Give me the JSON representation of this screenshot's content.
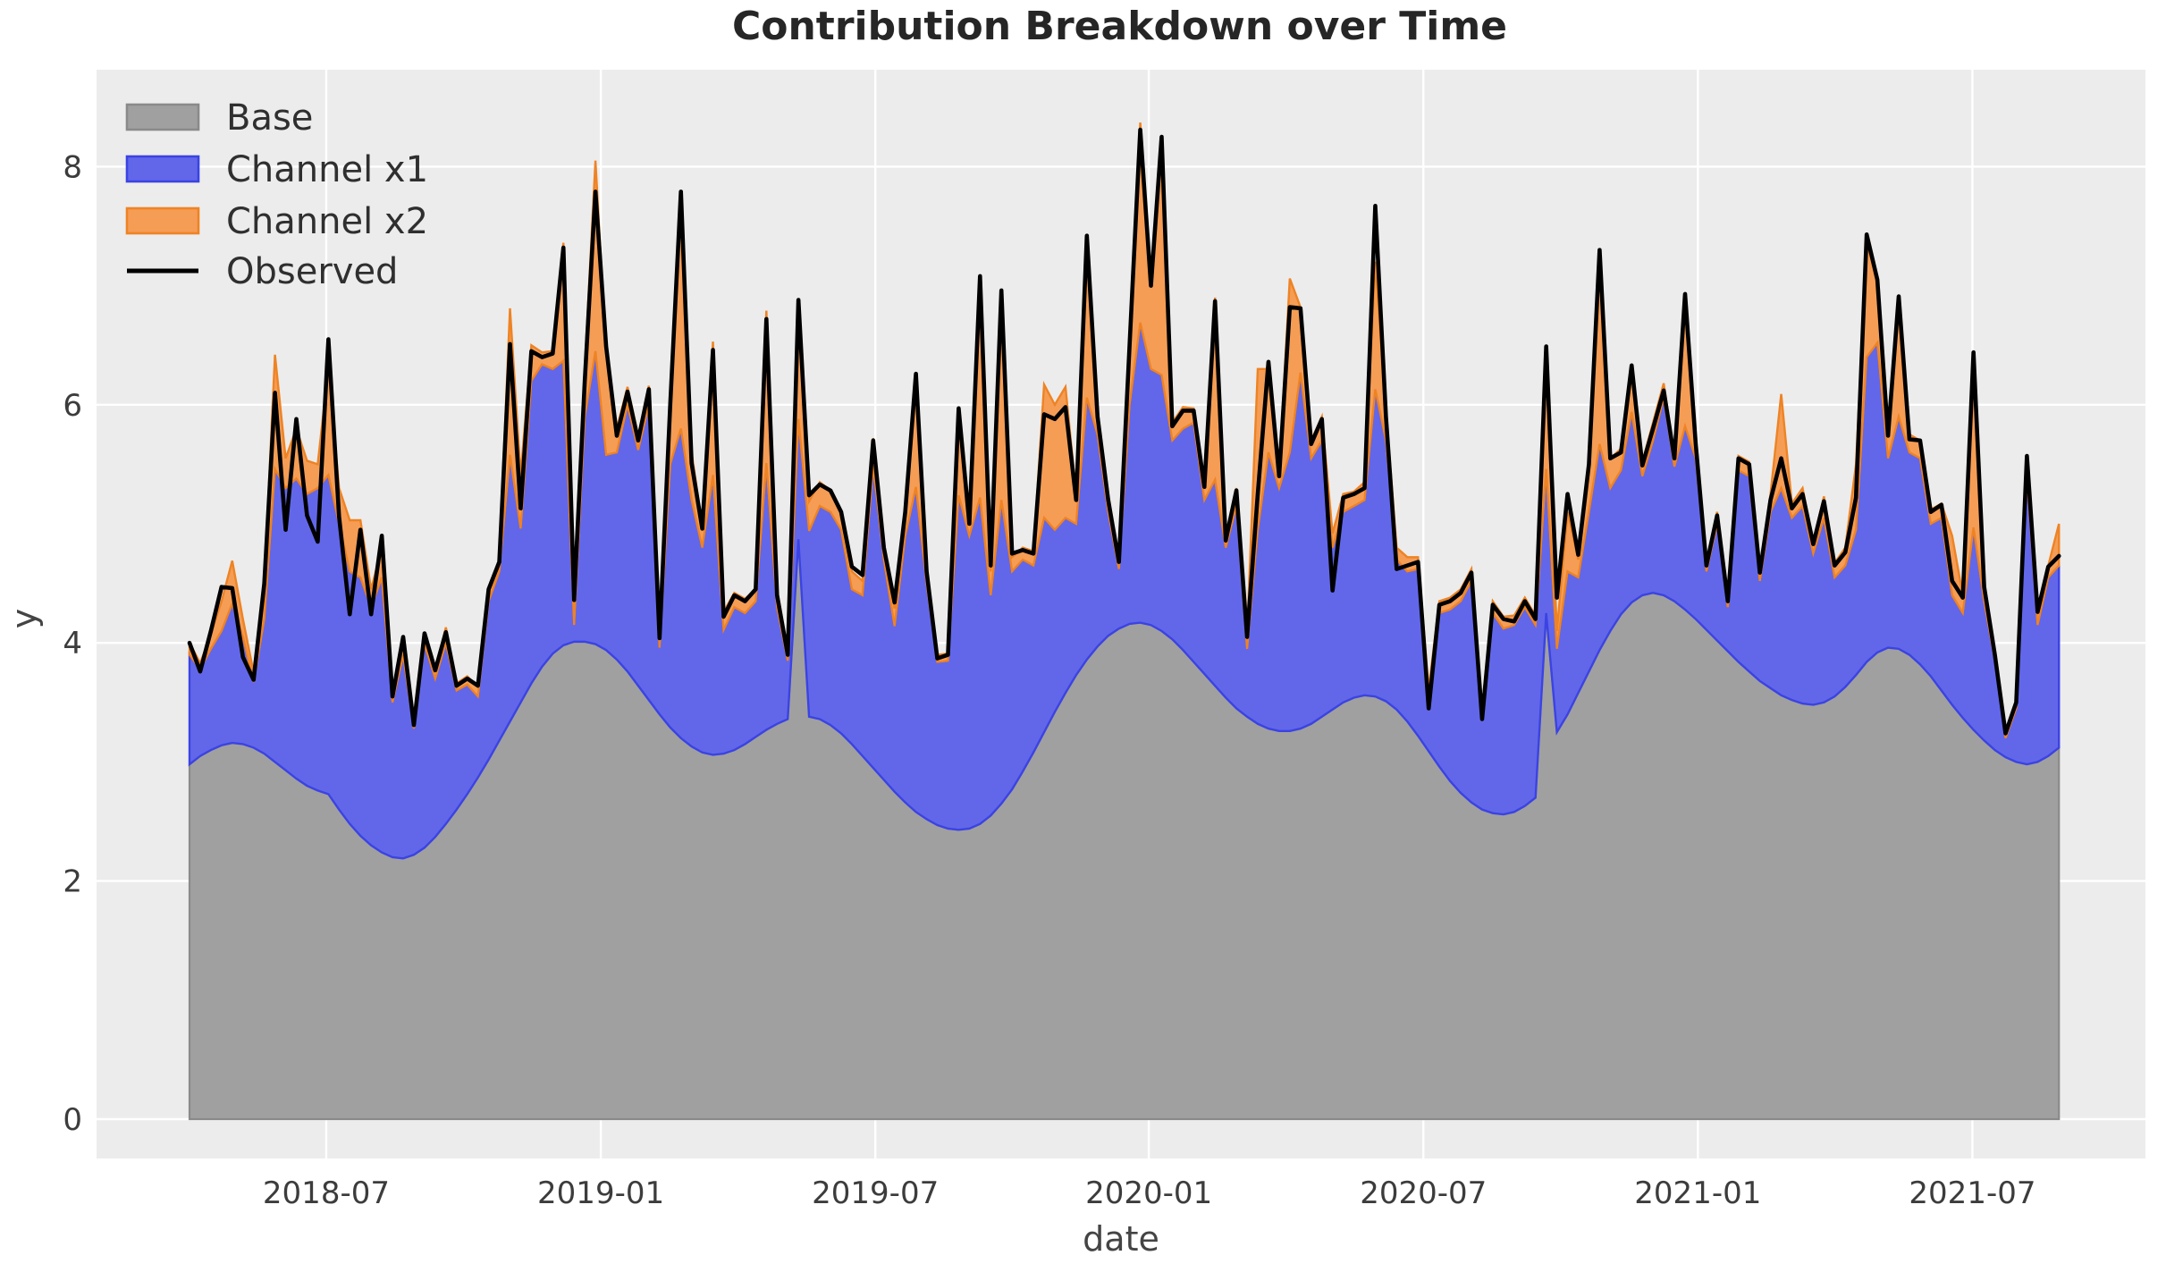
{
  "chart": {
    "window_title": "Contribution Breakdown over Time"
  },
  "chart_data": {
    "type": "area",
    "title": "Contribution Breakdown over Time",
    "xlabel": "date",
    "ylabel": "y",
    "x_unit": "weekly samples, index 0 = 2018-04-01",
    "n_points": 176,
    "ylim": [
      -0.45,
      8.8
    ],
    "grid": "on, white gridlines on light-gray panel",
    "legend_position": "upper left, no frame",
    "colors": {
      "panel_background": "#ececec",
      "gridline": "#ffffff",
      "base_fill": "#a0a0a0",
      "base_edge": "#8a8a8a",
      "x1_fill": "#6267ea",
      "x1_edge": "#3b43e3",
      "x2_fill": "#f59d55",
      "x2_edge": "#ee8324",
      "observed_line": "#000000",
      "tick_text": "#3c3c3c",
      "label_text": "#444444",
      "title_text": "#262626"
    },
    "legend": [
      {
        "label": "Base",
        "type": "patch",
        "fill": "#a0a0a0",
        "edge": "#8a8a8a"
      },
      {
        "label": "Channel x1",
        "type": "patch",
        "fill": "#6267ea",
        "edge": "#3b43e3"
      },
      {
        "label": "Channel x2",
        "type": "patch",
        "fill": "#f59d55",
        "edge": "#ee8324"
      },
      {
        "label": "Observed",
        "type": "line",
        "color": "#000000"
      }
    ],
    "x_ticks": [
      {
        "label": "2018-07",
        "week": 12.8
      },
      {
        "label": "2019-01",
        "week": 38.5
      },
      {
        "label": "2019-07",
        "week": 64.2
      },
      {
        "label": "2020-01",
        "week": 89.8
      },
      {
        "label": "2020-07",
        "week": 115.5
      },
      {
        "label": "2021-01",
        "week": 141.2
      },
      {
        "label": "2021-07",
        "week": 166.9
      }
    ],
    "y_ticks": [
      0,
      2,
      4,
      6,
      8
    ],
    "series": [
      {
        "name": "Base",
        "role": "stack_layer_1",
        "values": [
          2.98,
          3.05,
          3.1,
          3.14,
          3.16,
          3.15,
          3.12,
          3.07,
          3.0,
          2.93,
          2.86,
          2.8,
          2.76,
          2.73,
          2.6,
          2.48,
          2.38,
          2.3,
          2.24,
          2.2,
          2.19,
          2.22,
          2.28,
          2.37,
          2.48,
          2.6,
          2.73,
          2.87,
          3.02,
          3.18,
          3.34,
          3.5,
          3.66,
          3.8,
          3.91,
          3.98,
          4.01,
          4.01,
          3.99,
          3.94,
          3.86,
          3.76,
          3.64,
          3.52,
          3.4,
          3.29,
          3.2,
          3.13,
          3.08,
          3.06,
          3.07,
          3.1,
          3.15,
          3.21,
          3.27,
          3.32,
          3.36,
          4.87,
          3.38,
          3.36,
          3.31,
          3.24,
          3.15,
          3.05,
          2.95,
          2.85,
          2.75,
          2.66,
          2.58,
          2.52,
          2.47,
          2.44,
          2.43,
          2.44,
          2.48,
          2.55,
          2.65,
          2.77,
          2.92,
          3.08,
          3.25,
          3.42,
          3.58,
          3.73,
          3.86,
          3.97,
          4.06,
          4.12,
          4.16,
          4.17,
          4.15,
          4.1,
          4.03,
          3.94,
          3.84,
          3.74,
          3.64,
          3.54,
          3.45,
          3.38,
          3.32,
          3.28,
          3.26,
          3.26,
          3.28,
          3.32,
          3.38,
          3.44,
          3.5,
          3.54,
          3.56,
          3.55,
          3.51,
          3.44,
          3.34,
          3.22,
          3.09,
          2.96,
          2.84,
          2.74,
          2.66,
          2.6,
          2.57,
          2.56,
          2.58,
          2.63,
          2.7,
          4.25,
          3.25,
          3.4,
          3.58,
          3.76,
          3.94,
          4.1,
          4.24,
          4.34,
          4.4,
          4.42,
          4.4,
          4.35,
          4.28,
          4.2,
          4.11,
          4.02,
          3.93,
          3.84,
          3.76,
          3.68,
          3.62,
          3.56,
          3.52,
          3.49,
          3.48,
          3.5,
          3.55,
          3.63,
          3.73,
          3.84,
          3.92,
          3.96,
          3.95,
          3.9,
          3.82,
          3.72,
          3.6,
          3.48,
          3.37,
          3.27,
          3.18,
          3.1,
          3.04,
          3.0,
          2.98,
          3.0,
          3.05,
          3.12
        ]
      },
      {
        "name": "Channel x1",
        "role": "stack_layer_2",
        "values": [
          0.92,
          0.73,
          0.85,
          0.96,
          1.17,
          0.9,
          0.55,
          1.13,
          2.46,
          2.37,
          2.52,
          2.45,
          2.54,
          2.68,
          2.4,
          2.12,
          2.17,
          2.0,
          2.31,
          1.3,
          1.71,
          1.06,
          1.71,
          1.33,
          1.52,
          1.0,
          0.92,
          0.68,
          1.33,
          1.42,
          2.24,
          1.46,
          2.54,
          2.54,
          2.39,
          2.39,
          0.14,
          1.89,
          2.46,
          1.64,
          1.74,
          2.24,
          1.98,
          2.48,
          0.56,
          2.21,
          2.6,
          2.07,
          1.72,
          2.35,
          1.04,
          1.2,
          1.1,
          1.14,
          2.24,
          0.98,
          0.49,
          1.01,
          1.56,
          1.79,
          1.79,
          1.71,
          1.3,
          1.35,
          2.54,
          1.85,
          1.39,
          2.24,
          2.73,
          1.98,
          1.37,
          1.41,
          2.81,
          2.46,
          2.74,
          1.85,
          2.55,
          1.83,
          1.78,
          1.57,
          1.8,
          1.53,
          1.47,
          1.27,
          2.2,
          1.78,
          1.04,
          0.5,
          1.84,
          2.52,
          2.15,
          2.15,
          1.67,
          1.86,
          2.01,
          1.46,
          1.73,
          1.26,
          1.7,
          0.57,
          1.63,
          2.32,
          2.04,
          2.34,
          2.99,
          2.23,
          2.32,
          1.36,
          1.6,
          1.61,
          1.64,
          2.58,
          2.19,
          1.26,
          1.26,
          1.4,
          0.46,
          1.29,
          1.44,
          1.61,
          1.86,
          0.8,
          1.68,
          1.56,
          1.57,
          1.67,
          1.45,
          1.21,
          0.7,
          1.2,
          0.97,
          1.34,
          1.73,
          1.2,
          1.21,
          1.6,
          1.0,
          1.28,
          1.66,
          1.13,
          1.54,
          1.35,
          0.49,
          0.98,
          0.37,
          1.61,
          1.64,
          0.84,
          1.48,
          1.74,
          1.53,
          1.66,
          1.27,
          1.55,
          1.0,
          1.02,
          1.22,
          2.56,
          2.6,
          1.59,
          1.95,
          1.7,
          1.73,
          1.28,
          1.45,
          0.92,
          0.88,
          1.7,
          1.17,
          0.75,
          0.16,
          0.45,
          2.42,
          1.15,
          1.5,
          1.53
        ]
      },
      {
        "name": "Channel x2",
        "role": "stack_layer_3",
        "values": [
          0.1,
          0.05,
          0.12,
          0.25,
          0.36,
          0.15,
          0.08,
          0.3,
          0.96,
          0.25,
          0.42,
          0.28,
          0.2,
          0.9,
          0.3,
          0.43,
          0.48,
          0.15,
          0.25,
          0.1,
          0.12,
          0.05,
          0.1,
          0.08,
          0.13,
          0.06,
          0.07,
          0.08,
          0.12,
          0.1,
          1.23,
          0.45,
          0.3,
          0.1,
          0.15,
          0.99,
          0.15,
          0.4,
          1.6,
          0.85,
          0.2,
          0.15,
          0.12,
          0.16,
          0.1,
          0.55,
          1.9,
          0.4,
          0.18,
          1.12,
          0.15,
          0.12,
          0.12,
          0.1,
          1.28,
          0.15,
          0.08,
          0.97,
          0.25,
          0.2,
          0.18,
          0.15,
          0.15,
          0.12,
          0.23,
          0.12,
          0.15,
          0.18,
          0.95,
          0.12,
          0.06,
          0.06,
          0.61,
          0.12,
          1.68,
          0.2,
          1.6,
          0.12,
          0.1,
          0.12,
          1.12,
          1.05,
          1.1,
          0.25,
          1.34,
          0.2,
          0.15,
          0.08,
          0.5,
          1.68,
          0.72,
          1.95,
          0.15,
          0.18,
          0.12,
          0.12,
          1.53,
          0.1,
          0.15,
          0.12,
          1.35,
          0.7,
          0.15,
          1.46,
          0.55,
          0.15,
          0.2,
          0.12,
          0.15,
          0.12,
          0.15,
          1.07,
          0.25,
          0.1,
          0.12,
          0.1,
          0.06,
          0.1,
          0.1,
          0.1,
          0.1,
          0.05,
          0.1,
          0.1,
          0.08,
          0.08,
          0.08,
          0.9,
          0.15,
          0.5,
          0.15,
          0.4,
          1.5,
          0.25,
          0.18,
          0.35,
          0.12,
          0.15,
          0.12,
          0.1,
          1.05,
          0.15,
          0.08,
          0.1,
          0.08,
          0.12,
          0.12,
          0.1,
          0.15,
          0.79,
          0.12,
          0.15,
          0.1,
          0.18,
          0.12,
          0.15,
          0.55,
          0.95,
          0.53,
          0.25,
          0.98,
          0.15,
          0.15,
          0.12,
          0.12,
          0.5,
          0.15,
          1.41,
          0.12,
          0.08,
          0.05,
          0.06,
          0.15,
          0.1,
          0.1,
          0.35
        ]
      },
      {
        "name": "Observed",
        "role": "line",
        "values": [
          4.0,
          3.76,
          4.1,
          4.47,
          4.46,
          3.88,
          3.69,
          4.5,
          6.1,
          4.95,
          5.88,
          5.07,
          4.85,
          6.55,
          5.06,
          4.24,
          4.95,
          4.24,
          4.9,
          3.55,
          4.05,
          3.31,
          4.08,
          3.77,
          4.09,
          3.64,
          3.7,
          3.64,
          4.45,
          4.68,
          6.51,
          5.13,
          6.45,
          6.4,
          6.43,
          7.32,
          4.36,
          6.2,
          7.79,
          6.49,
          5.74,
          6.11,
          5.7,
          6.13,
          4.04,
          6.0,
          7.79,
          5.51,
          4.96,
          6.46,
          4.22,
          4.4,
          4.35,
          4.45,
          6.72,
          4.4,
          3.9,
          6.88,
          5.24,
          5.33,
          5.28,
          5.1,
          4.64,
          4.57,
          5.7,
          4.8,
          4.34,
          5.1,
          6.26,
          4.6,
          3.87,
          3.9,
          5.97,
          5.0,
          7.08,
          4.65,
          6.96,
          4.75,
          4.78,
          4.75,
          5.92,
          5.88,
          5.98,
          5.2,
          7.42,
          5.9,
          5.2,
          4.68,
          6.5,
          8.31,
          7.0,
          8.25,
          5.82,
          5.95,
          5.95,
          5.31,
          6.87,
          4.86,
          5.28,
          4.05,
          5.25,
          6.36,
          5.4,
          6.82,
          6.81,
          5.67,
          5.88,
          4.44,
          5.22,
          5.25,
          5.3,
          7.67,
          5.9,
          4.62,
          4.65,
          4.68,
          3.45,
          4.32,
          4.35,
          4.42,
          4.59,
          3.36,
          4.32,
          4.2,
          4.18,
          4.35,
          4.2,
          6.49,
          4.38,
          5.25,
          4.74,
          5.5,
          7.3,
          5.55,
          5.6,
          6.33,
          5.49,
          5.8,
          6.12,
          5.55,
          6.93,
          5.67,
          4.65,
          5.07,
          4.35,
          5.55,
          5.5,
          4.59,
          5.2,
          5.55,
          5.13,
          5.25,
          4.83,
          5.19,
          4.65,
          4.76,
          5.22,
          7.43,
          7.05,
          5.74,
          6.91,
          5.71,
          5.7,
          5.1,
          5.16,
          4.52,
          4.38,
          6.44,
          4.47,
          3.9,
          3.24,
          3.5,
          5.57,
          4.26,
          4.64,
          4.73
        ]
      }
    ]
  }
}
